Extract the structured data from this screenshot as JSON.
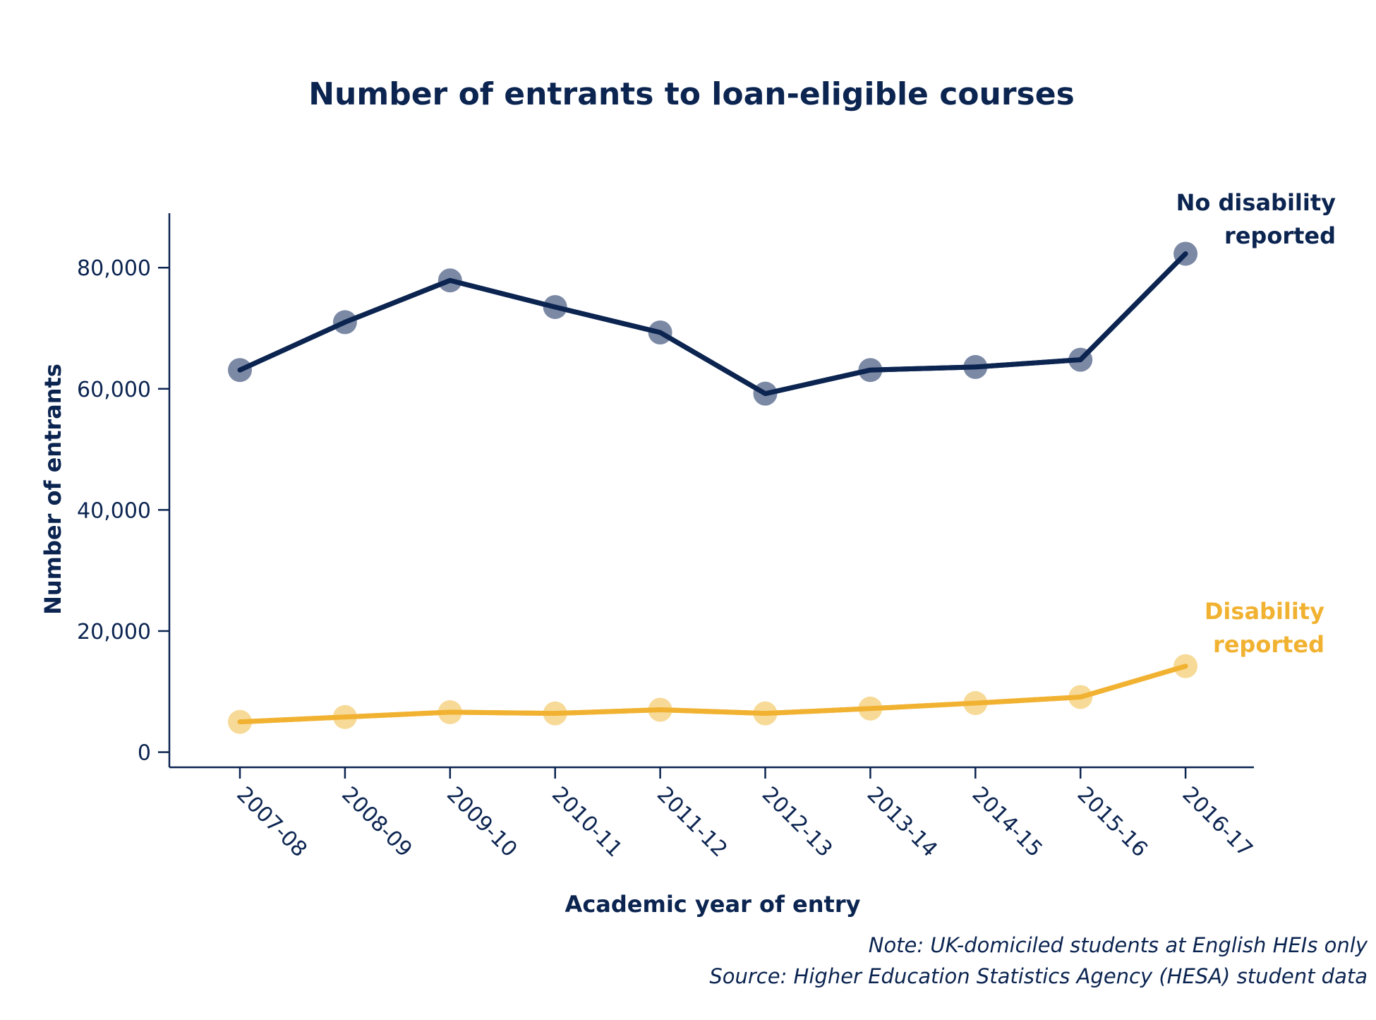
{
  "chart_data": {
    "type": "line",
    "title": "Number of entrants to loan-eligible courses",
    "xlabel": "Academic year of entry",
    "ylabel": "Number of entrants",
    "ylim": [
      -2500,
      89000
    ],
    "yticks": [
      0,
      20000,
      40000,
      60000,
      80000
    ],
    "ytick_labels": [
      "0",
      "20,000",
      "40,000",
      "60,000",
      "80,000"
    ],
    "grid": false,
    "legend": "direct labels at end of each line",
    "categories": [
      "2007-08",
      "2008-09",
      "2009-10",
      "2010-11",
      "2011-12",
      "2012-13",
      "2013-14",
      "2014-15",
      "2015-16",
      "2016-17"
    ],
    "series": [
      {
        "name": "No disability reported",
        "label_lines": [
          "No disability",
          "reported"
        ],
        "color": "#0b2450",
        "marker_color": "#7583a0",
        "values": [
          63100,
          71000,
          77900,
          73500,
          69300,
          59200,
          63100,
          63600,
          64800,
          82300
        ]
      },
      {
        "name": "Disability reported",
        "label_lines": [
          "Disability",
          "reported"
        ],
        "color": "#f1b232",
        "marker_color": "#f7d892",
        "values": [
          5000,
          5800,
          6600,
          6400,
          7000,
          6400,
          7200,
          8100,
          9100,
          14200
        ]
      }
    ],
    "annotations": [
      "Note: UK-domiciled students at English HEIs only",
      "Source: Higher Education Statistics Agency (HESA) student data"
    ]
  },
  "colors": {
    "text": "#0b2450",
    "axis": "#0b2450"
  }
}
